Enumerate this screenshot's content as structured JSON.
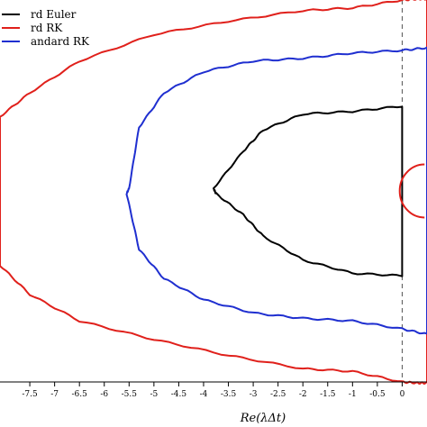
{
  "chart_data": {
    "type": "line",
    "xlabel": "Re(λΔt)",
    "xlim": [
      -8.1,
      0.5
    ],
    "ylim": [
      -3.6,
      3.6
    ],
    "x_tick_labels": [
      "-7.5",
      "-7",
      "-6.5",
      "-6",
      "-5.5",
      "-5",
      "-4.5",
      "-4",
      "-3.5",
      "-3",
      "-2.5",
      "-2",
      "-1.5",
      "-1",
      "-0.5",
      "0"
    ],
    "reference_line": {
      "x": 0,
      "style": "dashed",
      "color": "#555555"
    },
    "legend": {
      "position": "top-left",
      "entries": [
        "rd Euler",
        "rd RK",
        "andard RK"
      ]
    },
    "series": [
      {
        "name": "rd Euler",
        "color": "#000000",
        "points": [
          [
            -3.8,
            0.05
          ],
          [
            -3.2,
            0.75
          ],
          [
            -2.8,
            1.15
          ],
          [
            -2.0,
            1.45
          ],
          [
            -1.0,
            1.5
          ],
          [
            0.0,
            1.6
          ],
          [
            0.0,
            -1.6
          ],
          [
            -1.0,
            -1.55
          ],
          [
            -2.0,
            -1.3
          ],
          [
            -2.8,
            -0.85
          ],
          [
            -3.2,
            -0.45
          ],
          [
            -3.75,
            -0.05
          ]
        ]
      },
      {
        "name": "rd RK",
        "color": "#e0201b",
        "points": [
          [
            -8.1,
            1.4
          ],
          [
            -7.5,
            1.85
          ],
          [
            -6.5,
            2.45
          ],
          [
            -5.0,
            2.95
          ],
          [
            -3.5,
            3.2
          ],
          [
            -2.0,
            3.4
          ],
          [
            -1.0,
            3.45
          ],
          [
            0.0,
            3.6
          ],
          [
            0.3,
            3.62
          ],
          [
            0.5,
            3.62
          ],
          [
            0.5,
            -3.62
          ],
          [
            0.3,
            -3.62
          ],
          [
            0.0,
            -3.6
          ],
          [
            -1.0,
            -3.4
          ],
          [
            -2.0,
            -3.35
          ],
          [
            -3.5,
            -3.1
          ],
          [
            -5.0,
            -2.8
          ],
          [
            -6.5,
            -2.45
          ],
          [
            -7.5,
            -1.95
          ],
          [
            -8.1,
            -1.4
          ]
        ]
      },
      {
        "name": "andard RK",
        "color": "#1f2fd0",
        "points": [
          [
            -5.5,
            0.05
          ],
          [
            -5.3,
            1.2
          ],
          [
            -4.8,
            1.85
          ],
          [
            -4.0,
            2.25
          ],
          [
            -3.0,
            2.45
          ],
          [
            -2.0,
            2.5
          ],
          [
            -1.0,
            2.6
          ],
          [
            0.0,
            2.65
          ],
          [
            0.5,
            2.7
          ],
          [
            0.5,
            -2.7
          ],
          [
            0.0,
            -2.6
          ],
          [
            -1.0,
            -2.45
          ],
          [
            -2.0,
            -2.4
          ],
          [
            -3.0,
            -2.3
          ],
          [
            -4.0,
            -2.05
          ],
          [
            -4.8,
            -1.65
          ],
          [
            -5.3,
            -1.1
          ],
          [
            -5.55,
            -0.05
          ]
        ]
      }
    ],
    "partial_series": {
      "color": "#e0201b",
      "center": [
        0.45,
        0.0
      ],
      "radius": 0.5,
      "visible_arc_deg": [
        90,
        270
      ]
    }
  }
}
